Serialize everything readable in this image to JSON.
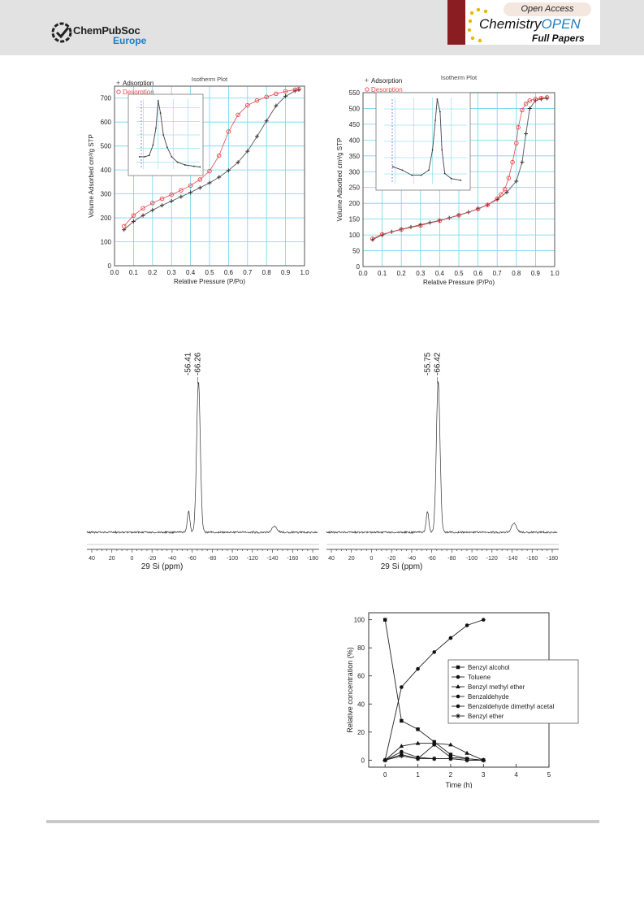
{
  "header": {
    "publisher": "ChemPubSoc",
    "publisher_region": "Europe",
    "open_access": "Open Access",
    "journal_part1": "Chemistry",
    "journal_part2": "OPEN",
    "section": "Full Papers"
  },
  "colors": {
    "header_bg": "#e2e2e2",
    "brand_blue": "#1a7fc4",
    "journal_red": "#8a1d22",
    "desorption": "#e8474c",
    "grid": "#6fd6ea"
  },
  "chart_data": [
    {
      "type": "line",
      "title": "Isotherm Plot",
      "xlabel": "Relative Pressure (P/Po)",
      "ylabel": "Volume Adsorbed cm³/g STP",
      "xlim": [
        0,
        1.0
      ],
      "ylim": [
        0,
        750
      ],
      "xticks": [
        "0.0",
        "0.1",
        "0.2",
        "0.3",
        "0.4",
        "0.5",
        "0.6",
        "0.7",
        "0.8",
        "0.9",
        "1.0"
      ],
      "yticks": [
        "0",
        "100",
        "200",
        "300",
        "400",
        "500",
        "600",
        "700"
      ],
      "grid": true,
      "legend": "top-left",
      "series": [
        {
          "name": "Adsorption",
          "marker": "+",
          "x": [
            0.05,
            0.1,
            0.15,
            0.2,
            0.25,
            0.3,
            0.35,
            0.4,
            0.45,
            0.5,
            0.55,
            0.6,
            0.65,
            0.7,
            0.75,
            0.8,
            0.85,
            0.9,
            0.95,
            0.97
          ],
          "y": [
            150,
            185,
            210,
            232,
            252,
            270,
            288,
            306,
            326,
            346,
            370,
            398,
            432,
            478,
            540,
            605,
            668,
            708,
            730,
            735
          ]
        },
        {
          "name": "Desorption",
          "marker": "o",
          "x": [
            0.97,
            0.95,
            0.9,
            0.85,
            0.8,
            0.75,
            0.7,
            0.65,
            0.6,
            0.55,
            0.5,
            0.45,
            0.4,
            0.35,
            0.3,
            0.25,
            0.2,
            0.15,
            0.1,
            0.05
          ],
          "y": [
            738,
            735,
            728,
            718,
            705,
            690,
            670,
            630,
            560,
            460,
            395,
            360,
            335,
            315,
            297,
            280,
            262,
            240,
            210,
            165
          ]
        }
      ]
    },
    {
      "type": "line",
      "title": "Isotherm Plot",
      "xlabel": "Relative Pressure (P/Po)",
      "ylabel": "Volume Adsorbed cm³/g STP",
      "xlim": [
        0,
        1.0
      ],
      "ylim": [
        0,
        550
      ],
      "xticks": [
        "0.0",
        "0.1",
        "0.2",
        "0.3",
        "0.4",
        "0.5",
        "0.6",
        "0.7",
        "0.8",
        "0.9",
        "1.0"
      ],
      "yticks": [
        "0",
        "50",
        "100",
        "150",
        "200",
        "250",
        "300",
        "350",
        "400",
        "450",
        "500",
        "550"
      ],
      "grid": true,
      "legend": "top-left",
      "series": [
        {
          "name": "Adsorption",
          "marker": "+",
          "x": [
            0.05,
            0.1,
            0.15,
            0.2,
            0.25,
            0.3,
            0.35,
            0.4,
            0.45,
            0.5,
            0.55,
            0.6,
            0.65,
            0.7,
            0.75,
            0.8,
            0.83,
            0.85,
            0.87,
            0.9,
            0.93,
            0.96
          ],
          "y": [
            85,
            100,
            110,
            118,
            125,
            132,
            139,
            146,
            154,
            163,
            172,
            183,
            195,
            212,
            235,
            270,
            330,
            420,
            500,
            525,
            530,
            532
          ]
        },
        {
          "name": "Desorption",
          "marker": "o",
          "x": [
            0.96,
            0.93,
            0.9,
            0.87,
            0.85,
            0.83,
            0.81,
            0.8,
            0.78,
            0.76,
            0.74,
            0.72,
            0.7,
            0.65,
            0.6,
            0.5,
            0.4,
            0.3,
            0.2,
            0.1,
            0.05
          ],
          "y": [
            535,
            533,
            530,
            525,
            515,
            495,
            440,
            390,
            330,
            280,
            245,
            228,
            215,
            195,
            182,
            162,
            145,
            130,
            117,
            102,
            88
          ]
        }
      ]
    },
    {
      "type": "line",
      "xlabel": "29 Si (ppm)",
      "xlim": [
        40,
        -180
      ],
      "xticks": [
        "40",
        "20",
        "0",
        "-20",
        "-40",
        "-60",
        "-80",
        "-100",
        "-120",
        "-140",
        "-160",
        "-180"
      ],
      "peak_labels": [
        "-56.41",
        "-66.26"
      ],
      "series": [
        {
          "x": [
            -56.41,
            -66.26,
            -142
          ],
          "y": [
            14,
            100,
            4
          ]
        }
      ]
    },
    {
      "type": "line",
      "xlabel": "29 Si (ppm)",
      "xlim": [
        40,
        -180
      ],
      "xticks": [
        "40",
        "20",
        "0",
        "-20",
        "-40",
        "-60",
        "-80",
        "-100",
        "-120",
        "-140",
        "-160",
        "-180"
      ],
      "peak_labels": [
        "-55.75",
        "-66.42"
      ],
      "series": [
        {
          "x": [
            -55.75,
            -66.42,
            -142
          ],
          "y": [
            14,
            100,
            6
          ]
        }
      ]
    },
    {
      "type": "line",
      "xlabel": "Time (h)",
      "ylabel": "Relative concentration (%)",
      "xlim": [
        -0.5,
        5
      ],
      "ylim": [
        -5,
        105
      ],
      "xticks": [
        "0",
        "1",
        "2",
        "3",
        "4",
        "5"
      ],
      "yticks": [
        "0",
        "20",
        "40",
        "60",
        "80",
        "100"
      ],
      "legend": "right",
      "x": [
        0,
        0.5,
        1,
        1.5,
        2,
        2.5,
        3
      ],
      "series": [
        {
          "name": "Benzyl alcohol",
          "marker": "square",
          "values": [
            100,
            28,
            22,
            13,
            4,
            1,
            0
          ]
        },
        {
          "name": "Toluene",
          "marker": "circle",
          "values": [
            0,
            52,
            65,
            77,
            87,
            96,
            100
          ]
        },
        {
          "name": "Benzyl methyl ether",
          "marker": "triangle",
          "values": [
            0,
            10,
            12,
            12,
            11,
            5,
            0
          ]
        },
        {
          "name": "Benzaldehyde",
          "marker": "circle",
          "values": [
            0,
            6,
            2,
            1,
            1,
            0,
            0
          ]
        },
        {
          "name": "Benzaldehyde dimethyl acetal",
          "marker": "circle",
          "values": [
            0,
            4,
            1,
            11,
            2,
            1,
            0
          ]
        },
        {
          "name": "Benzyl ether",
          "marker": "star",
          "values": [
            0,
            3,
            1,
            1,
            1,
            0,
            0
          ]
        }
      ]
    }
  ]
}
